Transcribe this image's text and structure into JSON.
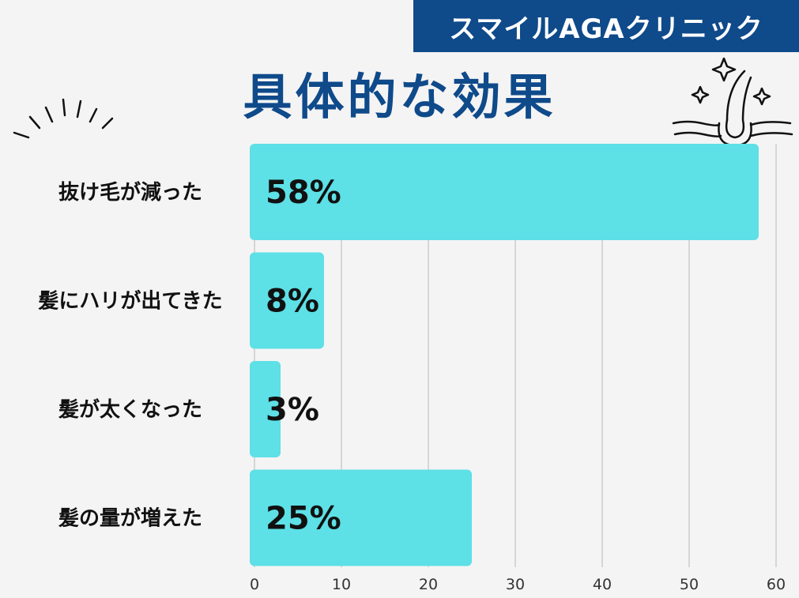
{
  "header": {
    "brand": "スマイルAGAクリニック",
    "title": "具体的な効果"
  },
  "colors": {
    "brand": "#0f4a8a",
    "bar": "#5de0e6",
    "grid": "#cccccc",
    "background": "#f4f4f4"
  },
  "icons": [
    "burst-lines-icon",
    "hair-follicle-sparkle-icon"
  ],
  "chart_data": {
    "type": "bar",
    "orientation": "horizontal",
    "categories": [
      "抜け毛が減った",
      "髪にハリが出てきた",
      "髪が太くなった",
      "髪の量が増えた"
    ],
    "values": [
      58,
      8,
      3,
      25
    ],
    "value_labels": [
      "58%",
      "8%",
      "3%",
      "25%"
    ],
    "xlim": [
      0,
      60
    ],
    "xticks": [
      0,
      10,
      20,
      30,
      40,
      50,
      60
    ],
    "grid": true,
    "legend": "none"
  }
}
